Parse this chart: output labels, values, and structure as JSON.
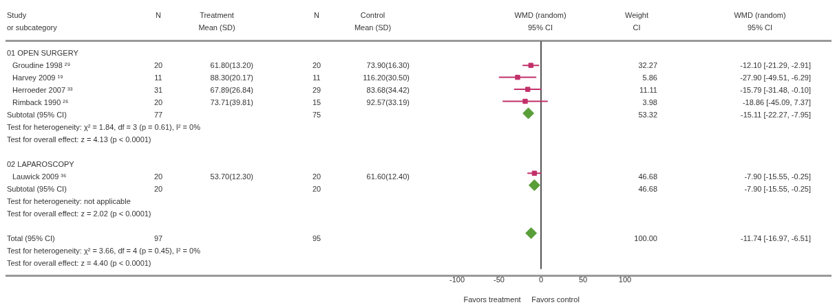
{
  "chart_data": [
    {
      "type": "other",
      "title": "Study",
      "subtitle": "or subcategory",
      "categories": [
        "01 OPEN SURGERY",
        "Groudine 1998 ²⁹",
        "Harvey 2009 ¹⁹",
        "Herroeder 2007 ³³",
        "Rimback 1990 ²⁶",
        "Subtotal (95% CI)",
        "Test for heterogeneity: χ² = 1.84, df = 3 (p = 0.61), I² = 0%",
        "Test for overall effect: z = 4.13 (p < 0.0001)",
        null,
        "02 LAPAROSCOPY",
        "Lauwick 2009 ³⁶",
        "Subtotal (95% CI)",
        "Test for heterogeneity: not applicable",
        "Test for overall effect: z = 2.02 (p < 0.0001)",
        null,
        "Total (95% CI)",
        "Test for heterogeneity: χ² = 3.66, df = 4 (p = 0.45), I² = 0%",
        "Test for overall effect: z = 4.40 (p < 0.0001)"
      ]
    },
    {
      "type": "other",
      "title": "N",
      "categories": [
        null,
        "20",
        "11",
        "31",
        "20",
        "77",
        null,
        null,
        null,
        null,
        "20",
        "20",
        null,
        null,
        null,
        "97",
        null,
        null
      ]
    },
    {
      "type": "other",
      "title": "Treatment",
      "subtitle": "Mean (SD)",
      "categories": [
        null,
        "61.80(13.20)",
        "88.30(20.17)",
        "67.89(26.84)",
        "73.71(39.81)",
        null,
        null,
        null,
        null,
        null,
        "53.70(12.30)",
        null,
        null,
        null,
        null,
        null,
        null,
        null
      ]
    },
    {
      "type": "other",
      "title": "N",
      "categories": [
        null,
        "20",
        "11",
        "29",
        "15",
        "75",
        null,
        null,
        null,
        null,
        "20",
        "20",
        null,
        null,
        null,
        "95",
        null,
        null
      ]
    },
    {
      "type": "other",
      "title": "Control",
      "subtitle": "Mean (SD)",
      "categories": [
        null,
        "73.90(16.30)",
        "116.20(30.50)",
        "83.68(34.42)",
        "92.57(33.19)",
        null,
        null,
        null,
        null,
        null,
        "61.60(12.40)",
        null,
        null,
        null,
        null,
        null,
        null,
        null
      ]
    },
    {
      "type": "scatter",
      "title": "WMD (random)",
      "subtitle": "95% CI",
      "orientation": "horizontal",
      "categories": [
        null,
        null,
        null,
        null,
        null,
        null,
        null,
        null,
        null,
        null,
        null,
        null,
        null,
        null,
        null,
        null,
        null,
        null
      ],
      "xlim": [
        -100,
        100
      ],
      "xticks": [
        -100,
        -50,
        0,
        50,
        100
      ],
      "grid": false,
      "legend": false,
      "ref_lines": [
        {
          "axis": "x",
          "value": 0,
          "color": "#555555"
        }
      ],
      "annotations": [
        "Favors treatment",
        "Favors control"
      ],
      "series": [
        {
          "color": "#c2306a",
          "marker": "square",
          "values": [
            null,
            -12.1,
            -27.9,
            -15.79,
            -18.86,
            null,
            null,
            null,
            null,
            null,
            -7.9,
            null,
            null,
            null,
            null,
            null,
            null,
            null
          ],
          "errors": [
            null,
            [
              -21.29,
              -2.91
            ],
            [
              -49.51,
              -6.29
            ],
            [
              -31.48,
              -0.1
            ],
            [
              -45.09,
              7.37
            ],
            null,
            null,
            null,
            null,
            null,
            [
              -15.55,
              -0.25
            ],
            null,
            null,
            null,
            null,
            null,
            null,
            null
          ]
        },
        {
          "color": "#5a9e3a",
          "marker": "diamond",
          "values": [
            null,
            null,
            null,
            null,
            null,
            -15.11,
            null,
            null,
            null,
            null,
            null,
            -7.9,
            null,
            null,
            null,
            -11.74,
            null,
            null
          ]
        }
      ]
    },
    {
      "type": "other",
      "title": "Weight",
      "subtitle": "CI",
      "categories": [
        null,
        "32.27",
        "5.86",
        "11.11",
        "3.98",
        "53.32",
        null,
        null,
        null,
        null,
        "46.68",
        "46.68",
        null,
        null,
        null,
        "100.00",
        null,
        null
      ]
    },
    {
      "type": "other",
      "title": "WMD (random)",
      "subtitle": "95% CI",
      "categories": [
        null,
        "-12.10 [-21.29, -2.91]",
        "-27.90 [-49.51, -6.29]",
        "-15.79 [-31.48, -0.10]",
        "-18.86 [-45.09, 7.37]",
        "-15.11 [-22.27, -7.95]",
        null,
        null,
        null,
        null,
        "-7.90 [-15.55, -0.25]",
        "-7.90 [-15.55, -0.25]",
        null,
        null,
        null,
        "-11.74 [-16.97, -6.51]",
        null,
        null
      ]
    }
  ]
}
